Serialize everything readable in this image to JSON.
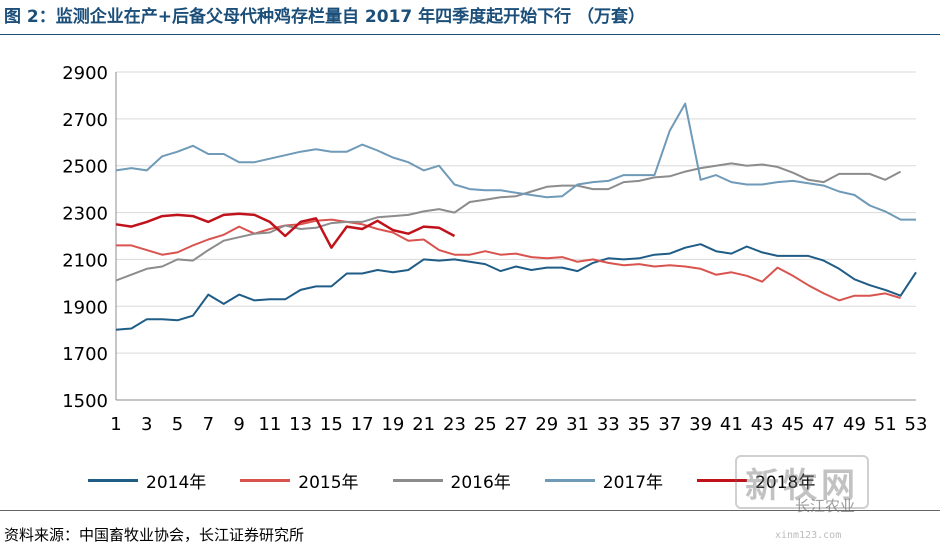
{
  "title": "图 2：监测企业在产+后备父母代种鸡存栏量自 2017 年四季度起开始下行  （万套）",
  "source": "资料来源：中国畜牧业协会，长江证券研究所",
  "watermark": {
    "logo_text": "新牧网",
    "sub_text": "长江农业",
    "url": "xinm123.com"
  },
  "chart_data": {
    "type": "line",
    "ylim": [
      1500,
      2900
    ],
    "yticks": [
      1500,
      1700,
      1900,
      2100,
      2300,
      2500,
      2700,
      2900
    ],
    "xticks": [
      1,
      3,
      5,
      7,
      9,
      11,
      13,
      15,
      17,
      19,
      21,
      23,
      25,
      27,
      29,
      31,
      33,
      35,
      37,
      39,
      41,
      43,
      45,
      47,
      49,
      51,
      53
    ],
    "xlim": [
      1,
      53
    ],
    "grid": true,
    "legend_position": "bottom",
    "series": [
      {
        "name": "2014年",
        "color": "#1f5c86",
        "values": [
          1800,
          1805,
          1845,
          1845,
          1840,
          1860,
          1950,
          1910,
          1950,
          1925,
          1930,
          1930,
          1970,
          1985,
          1985,
          2040,
          2040,
          2055,
          2045,
          2055,
          2100,
          2095,
          2100,
          2090,
          2080,
          2050,
          2070,
          2055,
          2065,
          2065,
          2050,
          2085,
          2105,
          2100,
          2105,
          2120,
          2125,
          2150,
          2165,
          2135,
          2125,
          2155,
          2130,
          2115,
          2115,
          2115,
          2095,
          2060,
          2015,
          1990,
          1970,
          1945,
          2045
        ]
      },
      {
        "name": "2015年",
        "color": "#d9534f",
        "values": [
          2160,
          2160,
          2140,
          2120,
          2130,
          2160,
          2185,
          2205,
          2240,
          2210,
          2230,
          2245,
          2250,
          2265,
          2270,
          2260,
          2250,
          2230,
          2215,
          2180,
          2185,
          2140,
          2120,
          2120,
          2135,
          2120,
          2125,
          2110,
          2105,
          2110,
          2090,
          2100,
          2085,
          2075,
          2080,
          2070,
          2075,
          2070,
          2060,
          2035,
          2045,
          2030,
          2005,
          2065,
          2030,
          1990,
          1955,
          1925,
          1945,
          1945,
          1955,
          1935
        ]
      },
      {
        "name": "2016年",
        "color": "#8c8c8c",
        "values": [
          2010,
          2035,
          2060,
          2070,
          2100,
          2095,
          2140,
          2180,
          2195,
          2210,
          2215,
          2245,
          2230,
          2235,
          2255,
          2260,
          2260,
          2280,
          2285,
          2290,
          2305,
          2315,
          2300,
          2345,
          2355,
          2365,
          2370,
          2390,
          2410,
          2415,
          2415,
          2400,
          2400,
          2430,
          2435,
          2450,
          2455,
          2475,
          2490,
          2500,
          2510,
          2500,
          2505,
          2495,
          2470,
          2440,
          2430,
          2465,
          2465,
          2465,
          2440,
          2475
        ]
      },
      {
        "name": "2017年",
        "color": "#6f9ab8",
        "values": [
          2480,
          2490,
          2480,
          2540,
          2560,
          2585,
          2550,
          2550,
          2515,
          2515,
          2530,
          2545,
          2560,
          2570,
          2560,
          2560,
          2590,
          2565,
          2535,
          2515,
          2480,
          2500,
          2420,
          2400,
          2395,
          2395,
          2385,
          2375,
          2365,
          2370,
          2420,
          2430,
          2435,
          2460,
          2460,
          2460,
          2650,
          2765,
          2440,
          2460,
          2430,
          2420,
          2420,
          2430,
          2435,
          2425,
          2415,
          2390,
          2375,
          2330,
          2305,
          2270,
          2270
        ]
      },
      {
        "name": "2018年",
        "color": "#c0121b",
        "values": [
          2250,
          2240,
          2260,
          2285,
          2290,
          2285,
          2260,
          2290,
          2295,
          2290,
          2260,
          2200,
          2260,
          2275,
          2150,
          2240,
          2230,
          2265,
          2225,
          2210,
          2240,
          2235,
          2200
        ]
      }
    ]
  }
}
